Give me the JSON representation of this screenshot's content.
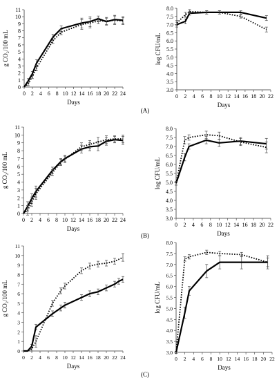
{
  "chart_data": [
    {
      "id": "A-co2",
      "panel": "(A)",
      "type": "line",
      "xlabel": "Days",
      "ylabel": "g CO₂/100 mL",
      "xlim": [
        0,
        24
      ],
      "ylim": [
        0,
        11
      ],
      "xticks": [
        0,
        2,
        4,
        6,
        8,
        10,
        12,
        14,
        16,
        18,
        20,
        22,
        24
      ],
      "yticks": [
        0,
        1,
        2,
        3,
        4,
        5,
        6,
        7,
        8,
        9,
        10,
        11
      ],
      "grid": false,
      "series": [
        {
          "style": "solid",
          "x": [
            0,
            1,
            2,
            3,
            7,
            9,
            14,
            16,
            18,
            20,
            22,
            24
          ],
          "y": [
            0,
            0.9,
            1.9,
            3.4,
            7.1,
            8.3,
            9.1,
            9.3,
            9.7,
            9.3,
            9.6,
            9.5
          ],
          "err": [
            0,
            0.3,
            0.3,
            0.5,
            0.4,
            0.4,
            0.7,
            0.7,
            0.4,
            0.5,
            0.6,
            0.5
          ]
        },
        {
          "style": "dotted",
          "x": [
            0,
            1,
            2,
            3,
            7,
            9,
            14,
            16,
            18,
            20,
            22,
            24
          ],
          "y": [
            0,
            0.5,
            1.5,
            2.7,
            6.6,
            7.8,
            8.9,
            9.1,
            9.4,
            9.4,
            9.5,
            9.4
          ],
          "err": [
            0,
            0.3,
            0.3,
            0.4,
            0.4,
            0.4,
            0.7,
            0.7,
            0.4,
            0.5,
            0.6,
            0.5
          ]
        }
      ]
    },
    {
      "id": "A-cfu",
      "panel": "(A)",
      "type": "line",
      "xlabel": "Days",
      "ylabel": "log CFU/mL",
      "xlim": [
        0,
        22
      ],
      "ylim": [
        3.0,
        8.0
      ],
      "xticks": [
        0,
        2,
        4,
        6,
        8,
        10,
        12,
        14,
        16,
        18,
        20,
        22
      ],
      "yticks": [
        "3.0",
        "3.5",
        "4.0",
        "4.5",
        "5.0",
        "5.5",
        "6.0",
        "6.5",
        "7.0",
        "7.5",
        "8.0"
      ],
      "grid": false,
      "series": [
        {
          "style": "solid",
          "x": [
            0,
            2,
            3,
            7,
            10,
            15,
            21
          ],
          "y": [
            7.0,
            7.2,
            7.7,
            7.75,
            7.75,
            7.75,
            7.4
          ],
          "err": [
            0.15,
            0.15,
            0.12,
            0.1,
            0.1,
            0.1,
            0.15
          ]
        },
        {
          "style": "dotted",
          "x": [
            0,
            2,
            3,
            7,
            10,
            15,
            21
          ],
          "y": [
            7.1,
            7.6,
            7.8,
            7.75,
            7.75,
            7.5,
            6.7
          ],
          "err": [
            0.15,
            0.15,
            0.12,
            0.1,
            0.1,
            0.1,
            0.15
          ]
        }
      ]
    },
    {
      "id": "B-co2",
      "panel": "(B)",
      "type": "line",
      "xlabel": "Days",
      "ylabel": "g CO₂/100 mL",
      "xlim": [
        0,
        24
      ],
      "ylim": [
        0,
        11
      ],
      "xticks": [
        0,
        2,
        4,
        6,
        8,
        10,
        12,
        14,
        16,
        18,
        20,
        22,
        24
      ],
      "yticks": [
        0,
        1,
        2,
        3,
        4,
        5,
        6,
        7,
        8,
        9,
        10,
        11
      ],
      "grid": false,
      "series": [
        {
          "style": "solid",
          "x": [
            0,
            1,
            2,
            3,
            7,
            9,
            10,
            14,
            16,
            18,
            20,
            22,
            24
          ],
          "y": [
            0,
            0.9,
            1.9,
            2.8,
            5.5,
            6.6,
            7.0,
            8.2,
            8.5,
            8.6,
            9.2,
            9.4,
            9.3
          ],
          "err": [
            0,
            0.6,
            0.6,
            0.7,
            0.4,
            0.4,
            0.4,
            0.5,
            0.5,
            0.6,
            0.5,
            0.4,
            0.5
          ]
        },
        {
          "style": "dotted",
          "x": [
            0,
            1,
            2,
            3,
            7,
            9,
            10,
            14,
            16,
            18,
            20,
            22,
            24
          ],
          "y": [
            0,
            0.4,
            1.5,
            2.5,
            5.2,
            6.5,
            6.9,
            8.5,
            8.8,
            9.1,
            9.4,
            9.5,
            9.5
          ],
          "err": [
            0,
            0.6,
            0.6,
            0.7,
            0.4,
            0.4,
            0.4,
            0.5,
            0.5,
            0.6,
            0.5,
            0.4,
            0.5
          ]
        }
      ]
    },
    {
      "id": "B-cfu",
      "panel": "(B)",
      "type": "line",
      "xlabel": "Days",
      "ylabel": "log CFU/mL",
      "xlim": [
        0,
        22
      ],
      "ylim": [
        3.0,
        8.0
      ],
      "xticks": [
        0,
        2,
        4,
        6,
        8,
        10,
        12,
        14,
        16,
        18,
        20,
        22
      ],
      "yticks": [
        "3.0",
        "3.5",
        "4.0",
        "4.5",
        "5.0",
        "5.5",
        "6.0",
        "6.5",
        "7.0",
        "7.5",
        "8.0"
      ],
      "grid": false,
      "series": [
        {
          "style": "solid",
          "x": [
            0,
            2,
            3,
            7,
            10,
            15,
            21
          ],
          "y": [
            4.95,
            6.4,
            7.0,
            7.35,
            7.2,
            7.3,
            7.15
          ],
          "err": [
            0.1,
            0.2,
            0.15,
            0.2,
            0.2,
            0.2,
            0.3
          ]
        },
        {
          "style": "dotted",
          "x": [
            0,
            2,
            3,
            7,
            10,
            15,
            21
          ],
          "y": [
            4.95,
            7.35,
            7.5,
            7.65,
            7.6,
            7.25,
            6.95
          ],
          "err": [
            0.1,
            0.2,
            0.15,
            0.2,
            0.2,
            0.2,
            0.3
          ]
        }
      ]
    },
    {
      "id": "C-co2",
      "panel": "(C)",
      "type": "line",
      "xlabel": "Days",
      "ylabel": "g CO₂/100 mL",
      "xlim": [
        0,
        24
      ],
      "ylim": [
        0,
        11
      ],
      "xticks": [
        0,
        2,
        4,
        6,
        8,
        10,
        12,
        14,
        16,
        18,
        20,
        22,
        24
      ],
      "yticks": [
        0,
        1,
        2,
        3,
        4,
        5,
        6,
        7,
        8,
        9,
        10,
        11
      ],
      "grid": false,
      "series": [
        {
          "style": "solid",
          "x": [
            0,
            1,
            2,
            3,
            7,
            9,
            10,
            14,
            16,
            18,
            20,
            22,
            23,
            24
          ],
          "y": [
            0,
            0,
            0.5,
            2.5,
            3.9,
            4.5,
            4.8,
            5.6,
            6.0,
            6.2,
            6.6,
            7.0,
            7.3,
            7.5
          ],
          "err": [
            0,
            0,
            0.2,
            0.3,
            0.3,
            0.3,
            0.3,
            0.3,
            0.3,
            0.3,
            0.3,
            0.3,
            0.3,
            0.3
          ]
        },
        {
          "style": "dotted",
          "x": [
            0,
            1,
            2,
            3,
            7,
            9,
            10,
            14,
            16,
            18,
            20,
            22,
            24
          ],
          "y": [
            0,
            0,
            0.2,
            1.0,
            5.0,
            6.3,
            6.8,
            8.4,
            8.9,
            9.1,
            9.2,
            9.4,
            9.8
          ],
          "err": [
            0,
            0,
            0.2,
            0.6,
            0.3,
            0.3,
            0.3,
            0.3,
            0.3,
            0.3,
            0.3,
            0.3,
            0.4
          ]
        }
      ]
    },
    {
      "id": "C-cfu",
      "panel": "(C)",
      "type": "line",
      "xlabel": "Days",
      "ylabel": "log CFU/mL",
      "xlim": [
        0,
        22
      ],
      "ylim": [
        3.0,
        8.0
      ],
      "xticks": [
        0,
        2,
        4,
        6,
        8,
        10,
        12,
        14,
        16,
        18,
        20,
        22
      ],
      "yticks": [
        "3.0",
        "3.5",
        "4.0",
        "4.5",
        "5.0",
        "5.5",
        "6.0",
        "6.5",
        "7.0",
        "7.5",
        "8.0"
      ],
      "grid": false,
      "series": [
        {
          "style": "solid",
          "x": [
            0,
            2,
            3,
            7,
            10,
            15,
            21
          ],
          "y": [
            3.0,
            4.8,
            5.8,
            6.7,
            7.1,
            7.1,
            7.1
          ],
          "err": [
            0.05,
            0.25,
            0.2,
            0.3,
            0.3,
            0.3,
            0.3
          ]
        },
        {
          "style": "dotted",
          "x": [
            0,
            2,
            3,
            7,
            10,
            15,
            21
          ],
          "y": [
            3.0,
            7.25,
            7.35,
            7.55,
            7.5,
            7.45,
            7.1
          ],
          "err": [
            0.05,
            0.1,
            0.1,
            0.1,
            0.1,
            0.1,
            0.2
          ]
        }
      ]
    }
  ]
}
